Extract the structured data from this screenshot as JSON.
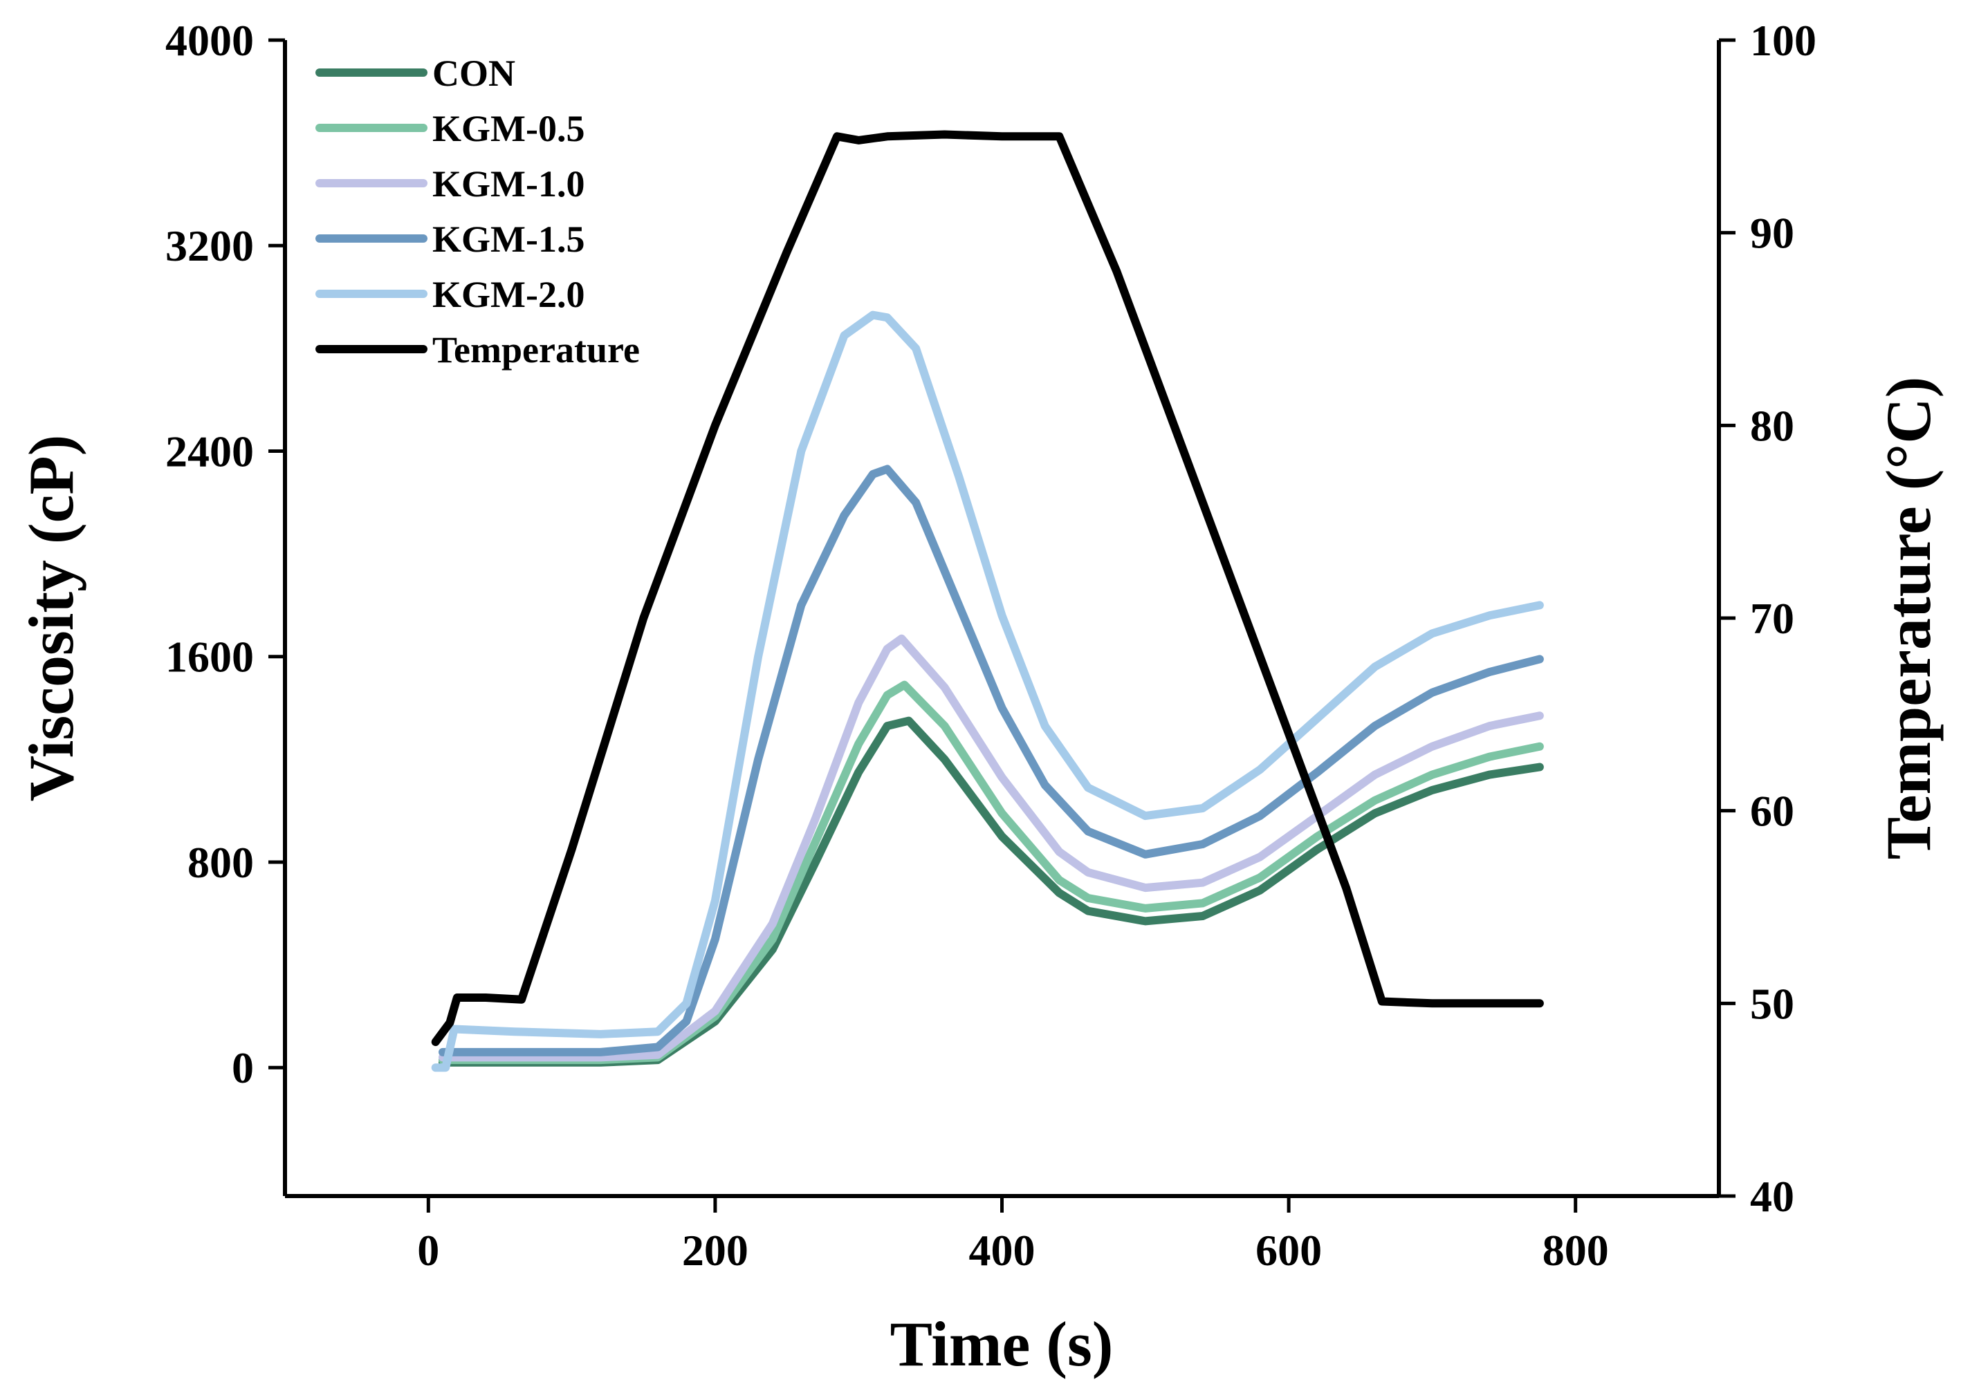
{
  "chart_data": {
    "type": "line",
    "title": "",
    "xlabel": "Time (s)",
    "ylabel": "Viscosity (cP)",
    "y2label": "Temperature (°C)",
    "xlim": [
      -100,
      900
    ],
    "ylim": [
      -500,
      4000
    ],
    "y2lim": [
      40,
      100
    ],
    "xticks": [
      0,
      200,
      400,
      600,
      800
    ],
    "yticks": [
      0,
      800,
      1600,
      2400,
      3200,
      4000
    ],
    "y2ticks": [
      40,
      50,
      60,
      70,
      80,
      90,
      100
    ],
    "legend_position": "top-left",
    "grid": false,
    "series": [
      {
        "name": "CON",
        "color": "#3a7d63",
        "axis": "left",
        "points": [
          [
            10,
            20
          ],
          [
            60,
            20
          ],
          [
            120,
            20
          ],
          [
            160,
            30
          ],
          [
            200,
            180
          ],
          [
            240,
            460
          ],
          [
            270,
            800
          ],
          [
            300,
            1150
          ],
          [
            320,
            1330
          ],
          [
            335,
            1350
          ],
          [
            360,
            1200
          ],
          [
            400,
            900
          ],
          [
            440,
            680
          ],
          [
            460,
            610
          ],
          [
            500,
            570
          ],
          [
            540,
            590
          ],
          [
            580,
            690
          ],
          [
            620,
            850
          ],
          [
            660,
            990
          ],
          [
            700,
            1080
          ],
          [
            740,
            1140
          ],
          [
            775,
            1170
          ]
        ]
      },
      {
        "name": "KGM-0.5",
        "color": "#7cc4a4",
        "axis": "left",
        "points": [
          [
            10,
            30
          ],
          [
            60,
            30
          ],
          [
            120,
            30
          ],
          [
            160,
            40
          ],
          [
            200,
            200
          ],
          [
            240,
            500
          ],
          [
            270,
            880
          ],
          [
            300,
            1260
          ],
          [
            320,
            1450
          ],
          [
            332,
            1490
          ],
          [
            360,
            1330
          ],
          [
            400,
            990
          ],
          [
            440,
            730
          ],
          [
            460,
            660
          ],
          [
            500,
            620
          ],
          [
            540,
            640
          ],
          [
            580,
            740
          ],
          [
            620,
            900
          ],
          [
            660,
            1040
          ],
          [
            700,
            1140
          ],
          [
            740,
            1210
          ],
          [
            775,
            1250
          ]
        ]
      },
      {
        "name": "KGM-1.0",
        "color": "#bfc1e6",
        "axis": "left",
        "points": [
          [
            10,
            40
          ],
          [
            60,
            40
          ],
          [
            120,
            40
          ],
          [
            160,
            50
          ],
          [
            200,
            220
          ],
          [
            240,
            560
          ],
          [
            270,
            970
          ],
          [
            300,
            1420
          ],
          [
            320,
            1630
          ],
          [
            330,
            1670
          ],
          [
            360,
            1480
          ],
          [
            400,
            1130
          ],
          [
            440,
            840
          ],
          [
            460,
            760
          ],
          [
            500,
            700
          ],
          [
            540,
            720
          ],
          [
            580,
            820
          ],
          [
            620,
            980
          ],
          [
            660,
            1140
          ],
          [
            700,
            1250
          ],
          [
            740,
            1330
          ],
          [
            775,
            1370
          ]
        ]
      },
      {
        "name": "KGM-1.5",
        "color": "#6a97c0",
        "axis": "left",
        "points": [
          [
            10,
            60
          ],
          [
            60,
            60
          ],
          [
            120,
            60
          ],
          [
            160,
            80
          ],
          [
            180,
            180
          ],
          [
            200,
            500
          ],
          [
            230,
            1200
          ],
          [
            260,
            1800
          ],
          [
            290,
            2150
          ],
          [
            310,
            2310
          ],
          [
            320,
            2330
          ],
          [
            340,
            2200
          ],
          [
            370,
            1800
          ],
          [
            400,
            1400
          ],
          [
            430,
            1100
          ],
          [
            460,
            920
          ],
          [
            500,
            830
          ],
          [
            540,
            870
          ],
          [
            580,
            980
          ],
          [
            620,
            1150
          ],
          [
            660,
            1330
          ],
          [
            700,
            1460
          ],
          [
            740,
            1540
          ],
          [
            775,
            1590
          ]
        ]
      },
      {
        "name": "KGM-2.0",
        "color": "#a5cbea",
        "axis": "left",
        "points": [
          [
            5,
            0
          ],
          [
            12,
            0
          ],
          [
            18,
            150
          ],
          [
            60,
            140
          ],
          [
            120,
            130
          ],
          [
            160,
            140
          ],
          [
            180,
            250
          ],
          [
            200,
            650
          ],
          [
            230,
            1600
          ],
          [
            260,
            2400
          ],
          [
            290,
            2850
          ],
          [
            310,
            2930
          ],
          [
            320,
            2920
          ],
          [
            340,
            2800
          ],
          [
            370,
            2300
          ],
          [
            400,
            1760
          ],
          [
            430,
            1330
          ],
          [
            460,
            1090
          ],
          [
            500,
            980
          ],
          [
            540,
            1010
          ],
          [
            580,
            1160
          ],
          [
            620,
            1360
          ],
          [
            660,
            1560
          ],
          [
            700,
            1690
          ],
          [
            740,
            1760
          ],
          [
            775,
            1800
          ]
        ]
      },
      {
        "name": "Temperature",
        "color": "#000000",
        "axis": "right",
        "points": [
          [
            5,
            48
          ],
          [
            15,
            49
          ],
          [
            20,
            50.3
          ],
          [
            40,
            50.3
          ],
          [
            65,
            50.2
          ],
          [
            100,
            58
          ],
          [
            150,
            70
          ],
          [
            200,
            80
          ],
          [
            250,
            89
          ],
          [
            285,
            95
          ],
          [
            300,
            94.8
          ],
          [
            320,
            95
          ],
          [
            360,
            95.1
          ],
          [
            400,
            95
          ],
          [
            440,
            95
          ],
          [
            480,
            88
          ],
          [
            520,
            80
          ],
          [
            560,
            72
          ],
          [
            600,
            64
          ],
          [
            640,
            56
          ],
          [
            665,
            50.1
          ],
          [
            700,
            50
          ],
          [
            740,
            50
          ],
          [
            775,
            50
          ]
        ]
      }
    ]
  }
}
